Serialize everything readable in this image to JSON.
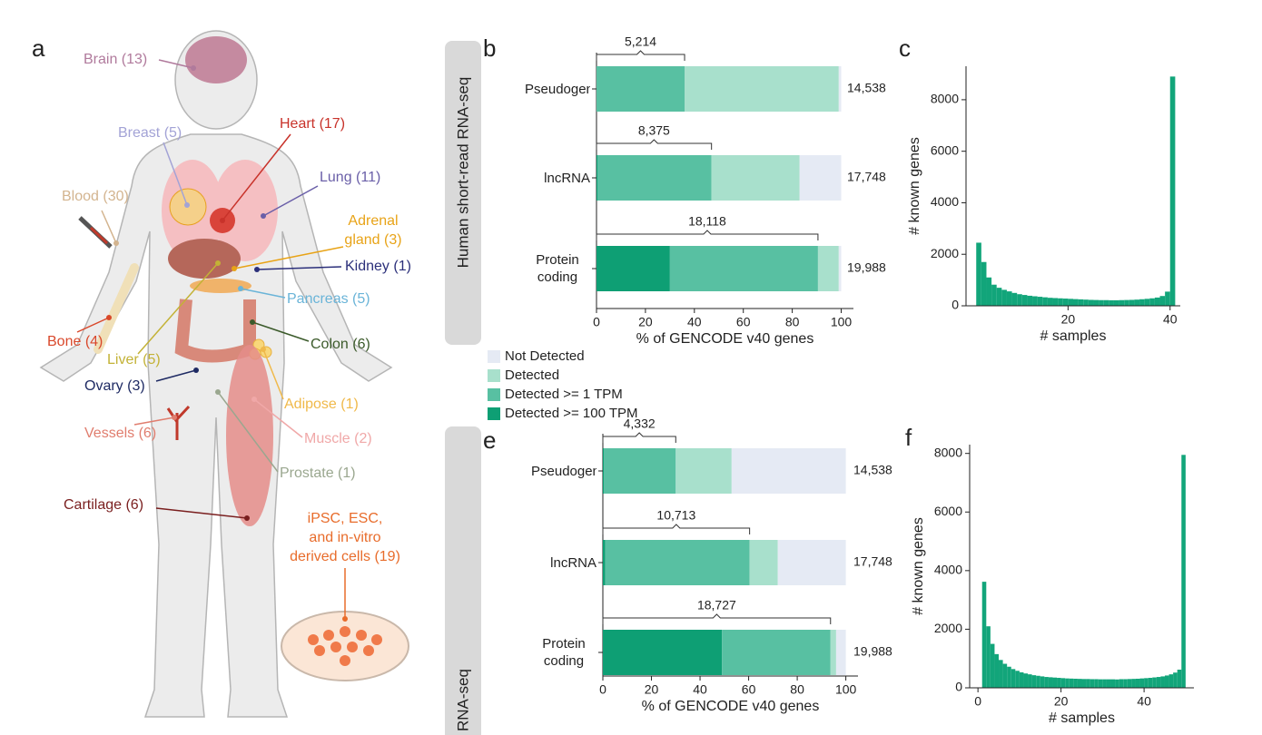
{
  "panel_labels": [
    "a",
    "b",
    "c",
    "e",
    "f"
  ],
  "section_labels": [
    "Human short-read RNA-seq",
    "RNA-seq"
  ],
  "diagram": {
    "tissues": [
      {
        "label": [
          "Brain (13)"
        ],
        "color": "#b07a9c"
      },
      {
        "label": [
          "Breast (5)"
        ],
        "color": "#a3a3d6"
      },
      {
        "label": [
          "Heart (17)"
        ],
        "color": "#c8322a"
      },
      {
        "label": [
          "Lung (11)"
        ],
        "color": "#6a5fa8"
      },
      {
        "label": [
          "Blood (30)"
        ],
        "color": "#d3b48f"
      },
      {
        "label": [
          "Adrenal",
          "gland (3)"
        ],
        "color": "#e8a317"
      },
      {
        "label": [
          "Kidney (1)"
        ],
        "color": "#2b2f7a"
      },
      {
        "label": [
          "Pancreas (5)"
        ],
        "color": "#6ab4d8"
      },
      {
        "label": [
          "Colon (6)"
        ],
        "color": "#3b5a2a"
      },
      {
        "label": [
          "Bone (4)"
        ],
        "color": "#d9482b"
      },
      {
        "label": [
          "Liver (5)"
        ],
        "color": "#c3b236"
      },
      {
        "label": [
          "Ovary (3)"
        ],
        "color": "#1e2a63"
      },
      {
        "label": [
          "Adipose (1)"
        ],
        "color": "#f0b94a"
      },
      {
        "label": [
          "Vessels (6)"
        ],
        "color": "#e07d6e"
      },
      {
        "label": [
          "Muscle (2)"
        ],
        "color": "#f0a8a8"
      },
      {
        "label": [
          "Prostate (1)"
        ],
        "color": "#9aa78f"
      },
      {
        "label": [
          "Cartilage (6)"
        ],
        "color": "#7a1f1f"
      },
      {
        "label": [
          "iPSC, ESC,",
          "and in-vitro",
          "derived cells (19)"
        ],
        "color": "#e86c2b"
      }
    ]
  },
  "chart_data": [
    {
      "type": "stacked_barh",
      "categories": [
        "Pseudogene",
        "lncRNA",
        "Protein coding"
      ],
      "series": [
        {
          "name": "Not Detected",
          "color": "#e5eaf4",
          "values": [
            1,
            17,
            1
          ]
        },
        {
          "name": "Detected",
          "color": "#a8e0cc",
          "values": [
            63,
            36,
            8.5
          ]
        },
        {
          "name": "Detected >= 1 TPM",
          "color": "#58c0a2",
          "values": [
            36,
            46.5,
            60.5
          ]
        },
        {
          "name": "Detected >= 100 TPM",
          "color": "#0e9f74",
          "values": [
            0,
            0.5,
            30
          ]
        }
      ],
      "brackets": {
        "values": [
          5214,
          8375,
          18118
        ],
        "value_labels": [
          "5,214",
          "8,375",
          "18,118"
        ]
      },
      "totals": {
        "values": [
          14538,
          17748,
          19988
        ],
        "value_labels": [
          "14,538",
          "17,748",
          "19,988"
        ]
      },
      "xlabel": "% of GENCODE v40 genes",
      "xlim": [
        0,
        105
      ],
      "xticks": [
        0,
        20,
        40,
        60,
        80,
        100
      ]
    },
    {
      "type": "histogram",
      "bins": [
        2,
        3,
        4,
        5,
        6,
        7,
        8,
        9,
        10,
        11,
        12,
        13,
        14,
        15,
        16,
        17,
        18,
        19,
        20,
        21,
        22,
        23,
        24,
        25,
        26,
        27,
        28,
        29,
        30,
        31,
        32,
        33,
        34,
        35,
        36,
        37,
        38,
        39,
        40,
        41
      ],
      "values": [
        2450,
        1700,
        1100,
        820,
        700,
        620,
        560,
        500,
        450,
        420,
        390,
        370,
        350,
        330,
        310,
        300,
        290,
        280,
        270,
        260,
        250,
        240,
        230,
        225,
        220,
        220,
        215,
        215,
        220,
        225,
        230,
        240,
        255,
        270,
        290,
        320,
        380,
        550,
        8900
      ],
      "color": "#12a57a",
      "xlabel": "# samples",
      "ylabel": "# known genes",
      "xlim": [
        0,
        42
      ],
      "xticks": [
        20,
        40
      ],
      "ylim": [
        0,
        9300
      ],
      "yticks": [
        0,
        2000,
        4000,
        6000,
        8000
      ]
    },
    {
      "type": "stacked_barh",
      "categories": [
        "Pseudogene",
        "lncRNA",
        "Protein coding"
      ],
      "series": [
        {
          "color": "#e5eaf4",
          "values": [
            47,
            28,
            4
          ]
        },
        {
          "color": "#a8e0cc",
          "values": [
            23,
            11.6,
            2.3
          ]
        },
        {
          "color": "#58c0a2",
          "values": [
            29.5,
            59.4,
            44.7
          ]
        },
        {
          "color": "#0e9f74",
          "values": [
            0.5,
            1,
            49
          ]
        }
      ],
      "brackets": {
        "values": [
          4332,
          10713,
          18727
        ],
        "value_labels": [
          "4,332",
          "10,713",
          "18,727"
        ]
      },
      "totals": {
        "values": [
          14538,
          17748,
          19988
        ],
        "value_labels": [
          "14,538",
          "17,748",
          "19,988"
        ]
      },
      "xlabel": "% of GENCODE v40 genes",
      "xlim": [
        0,
        105
      ],
      "xticks": [
        0,
        20,
        40,
        60,
        80,
        100
      ]
    },
    {
      "type": "histogram",
      "bins": [
        1,
        2,
        3,
        4,
        5,
        6,
        7,
        8,
        9,
        10,
        11,
        12,
        13,
        14,
        15,
        16,
        17,
        18,
        19,
        20,
        21,
        22,
        23,
        24,
        25,
        26,
        27,
        28,
        29,
        30,
        31,
        32,
        33,
        34,
        35,
        36,
        37,
        38,
        39,
        40,
        41,
        42,
        43,
        44,
        45,
        46,
        47,
        48,
        49,
        50
      ],
      "values": [
        3620,
        2100,
        1500,
        1150,
        950,
        820,
        720,
        640,
        580,
        530,
        490,
        460,
        430,
        410,
        390,
        370,
        360,
        350,
        340,
        330,
        320,
        315,
        310,
        305,
        300,
        300,
        295,
        295,
        290,
        290,
        290,
        290,
        285,
        295,
        295,
        300,
        305,
        310,
        320,
        330,
        340,
        355,
        370,
        390,
        420,
        460,
        520,
        620,
        7950
      ],
      "color": "#12a57a",
      "xlabel": "# samples",
      "ylabel": "# known genes",
      "xlim": [
        -2,
        52
      ],
      "xticks": [
        0,
        20,
        40
      ],
      "ylim": [
        0,
        8300
      ],
      "yticks": [
        0,
        2000,
        4000,
        6000,
        8000
      ]
    }
  ]
}
